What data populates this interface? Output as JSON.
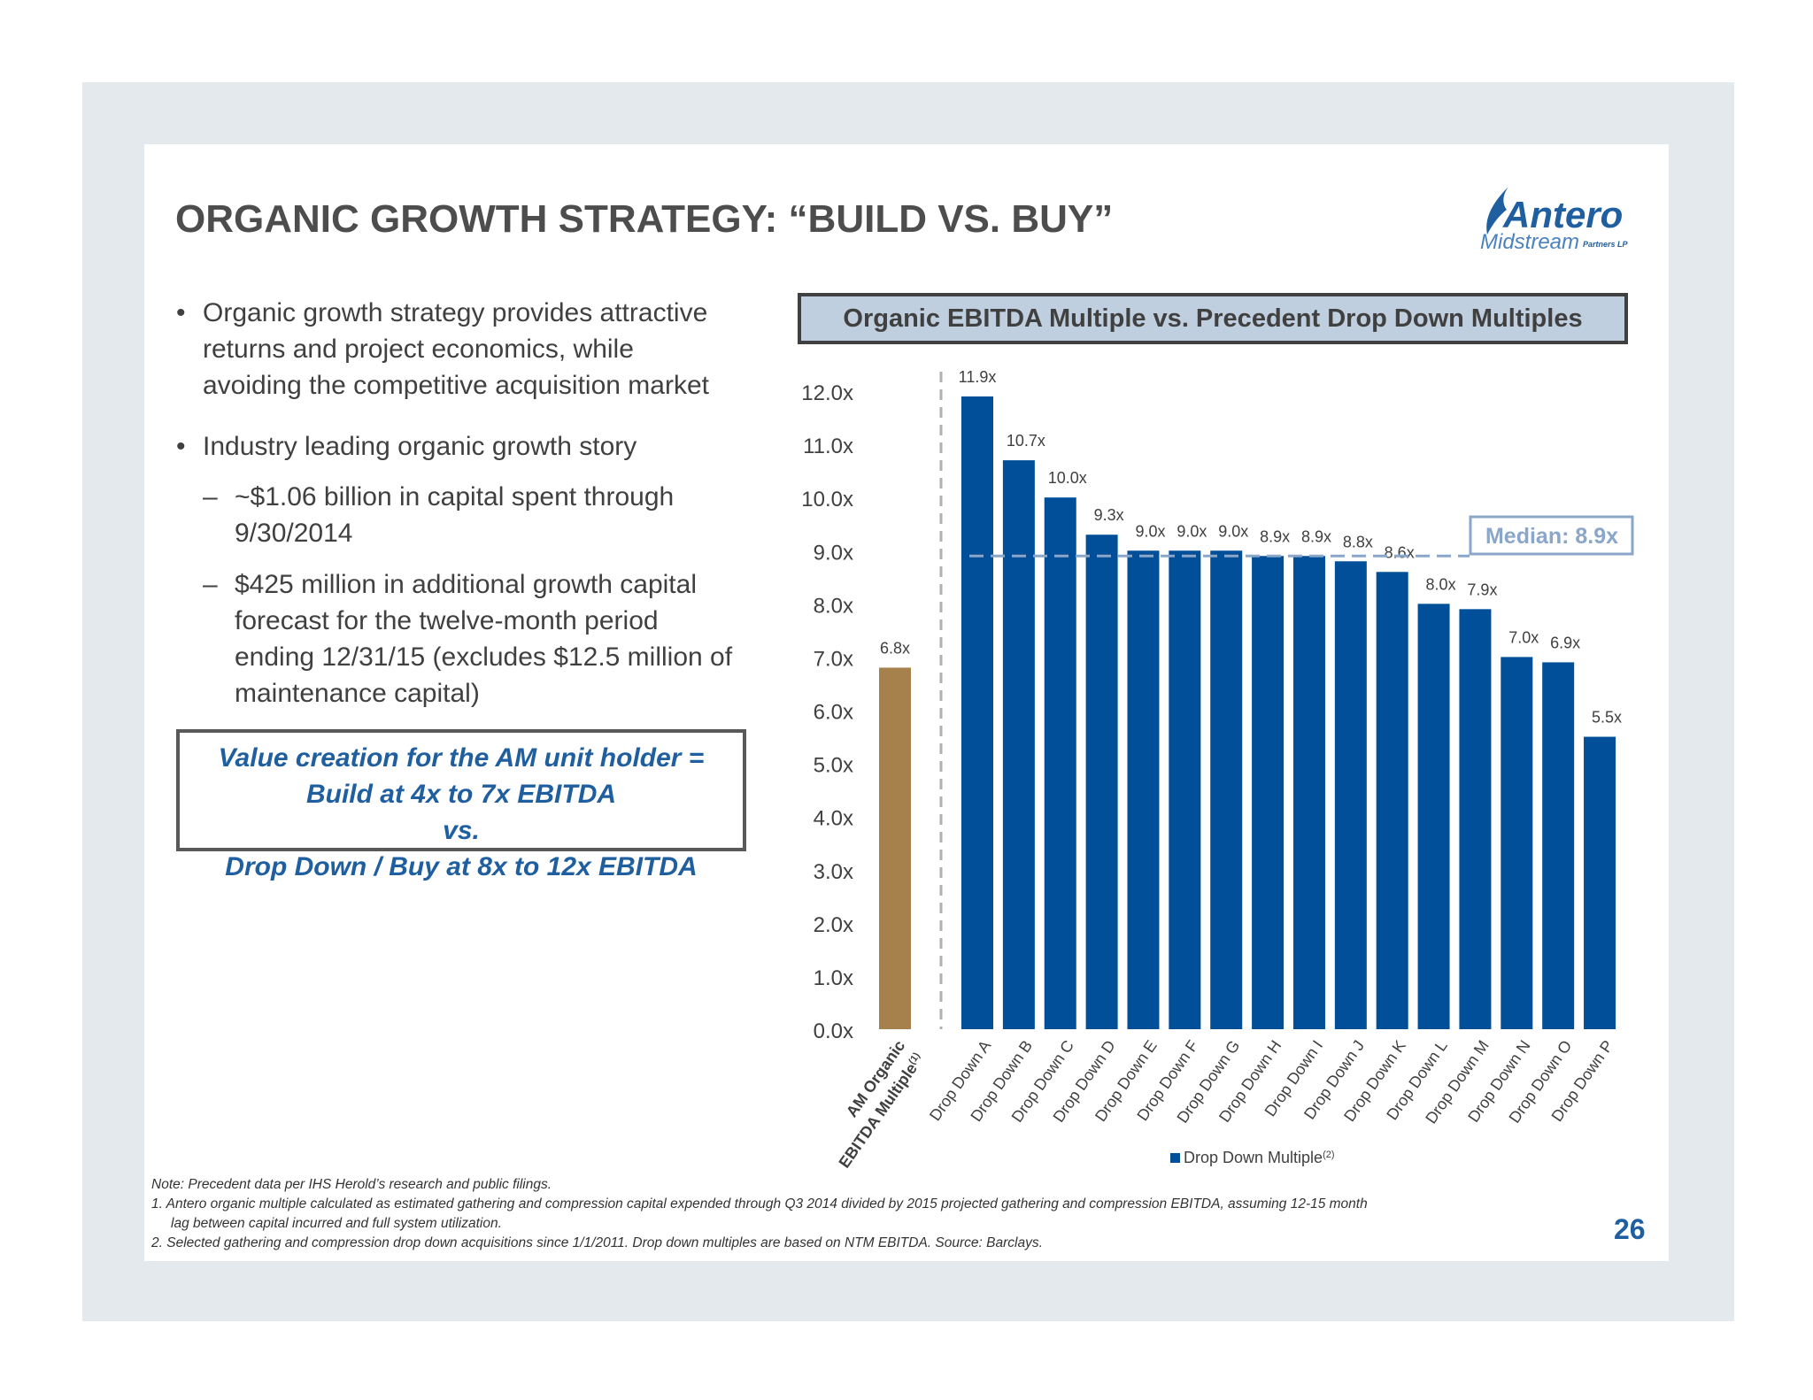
{
  "title": "ORGANIC GROWTH STRATEGY: “BUILD VS. BUY”",
  "logo": {
    "main": "Antero",
    "sub": "Midstream",
    "suffix": "Partners LP"
  },
  "bullets": [
    {
      "lines": [
        "Organic growth strategy provides attractive",
        "returns and project economics, while",
        "avoiding the competitive acquisition market"
      ]
    },
    {
      "lines": [
        "Industry leading organic growth story"
      ]
    }
  ],
  "sub_bullets": [
    {
      "lines": [
        "~$1.06 billion in capital spent through",
        "9/30/2014"
      ]
    },
    {
      "lines": [
        "$425 million in additional growth capital",
        "forecast for the twelve-month period",
        "ending 12/31/15 (excludes $12.5 million of",
        "maintenance capital)"
      ]
    }
  ],
  "value_box": {
    "line1": "Value creation for the AM unit holder =",
    "line2": "Build at 4x to 7x EBITDA",
    "line3": "vs.",
    "line4": "Drop Down / Buy at 8x to 12x EBITDA"
  },
  "chart_title": "Organic EBITDA Multiple vs. Precedent Drop Down Multiples",
  "chart_data": {
    "type": "bar",
    "ylim": [
      0,
      12
    ],
    "yticks": [
      "0.0x",
      "1.0x",
      "2.0x",
      "3.0x",
      "4.0x",
      "5.0x",
      "6.0x",
      "7.0x",
      "8.0x",
      "9.0x",
      "10.0x",
      "11.0x",
      "12.0x"
    ],
    "organic": {
      "label_line1": "AM Organic",
      "label_line2": "EBITDA Multiple",
      "label_sup": "(1)",
      "value": 6.8,
      "value_label": "6.8x",
      "color": "#a6814c"
    },
    "series": [
      {
        "name": "Drop Down Multiple",
        "name_sup": "(2)",
        "color": "#004f98",
        "categories": [
          "Drop Down A",
          "Drop Down B",
          "Drop Down C",
          "Drop Down D",
          "Drop Down E",
          "Drop Down F",
          "Drop Down G",
          "Drop Down H",
          "Drop Down I",
          "Drop Down J",
          "Drop Down K",
          "Drop Down L",
          "Drop Down M",
          "Drop Down N",
          "Drop Down O",
          "Drop Down P"
        ],
        "values": [
          11.9,
          10.7,
          10.0,
          9.3,
          9.0,
          9.0,
          9.0,
          8.9,
          8.9,
          8.8,
          8.6,
          8.0,
          7.9,
          7.0,
          6.9,
          5.5
        ],
        "value_labels": [
          "11.9x",
          "10.7x",
          "10.0x",
          "9.3x",
          "9.0x",
          "9.0x",
          "9.0x",
          "8.9x",
          "8.9x",
          "8.8x",
          "8.6x",
          "8.0x",
          "7.9x",
          "7.0x",
          "6.9x",
          "5.5x"
        ]
      }
    ],
    "median": {
      "value": 8.9,
      "label": "Median: 8.9x",
      "color": "#8aa6c8"
    },
    "legend": "bottom"
  },
  "notes": [
    "Note: Precedent data per IHS Herold’s research and public filings.",
    "1. Antero organic multiple calculated as estimated gathering and compression capital expended through Q3 2014 divided by 2015 projected gathering and compression EBITDA, assuming 12-15 month",
    "lag between capital incurred and full system utilization.",
    "2. Selected gathering and compression drop down acquisitions since 1/1/2011. Drop down multiples are based on NTM EBITDA. Source: Barclays."
  ],
  "page_number": "26"
}
